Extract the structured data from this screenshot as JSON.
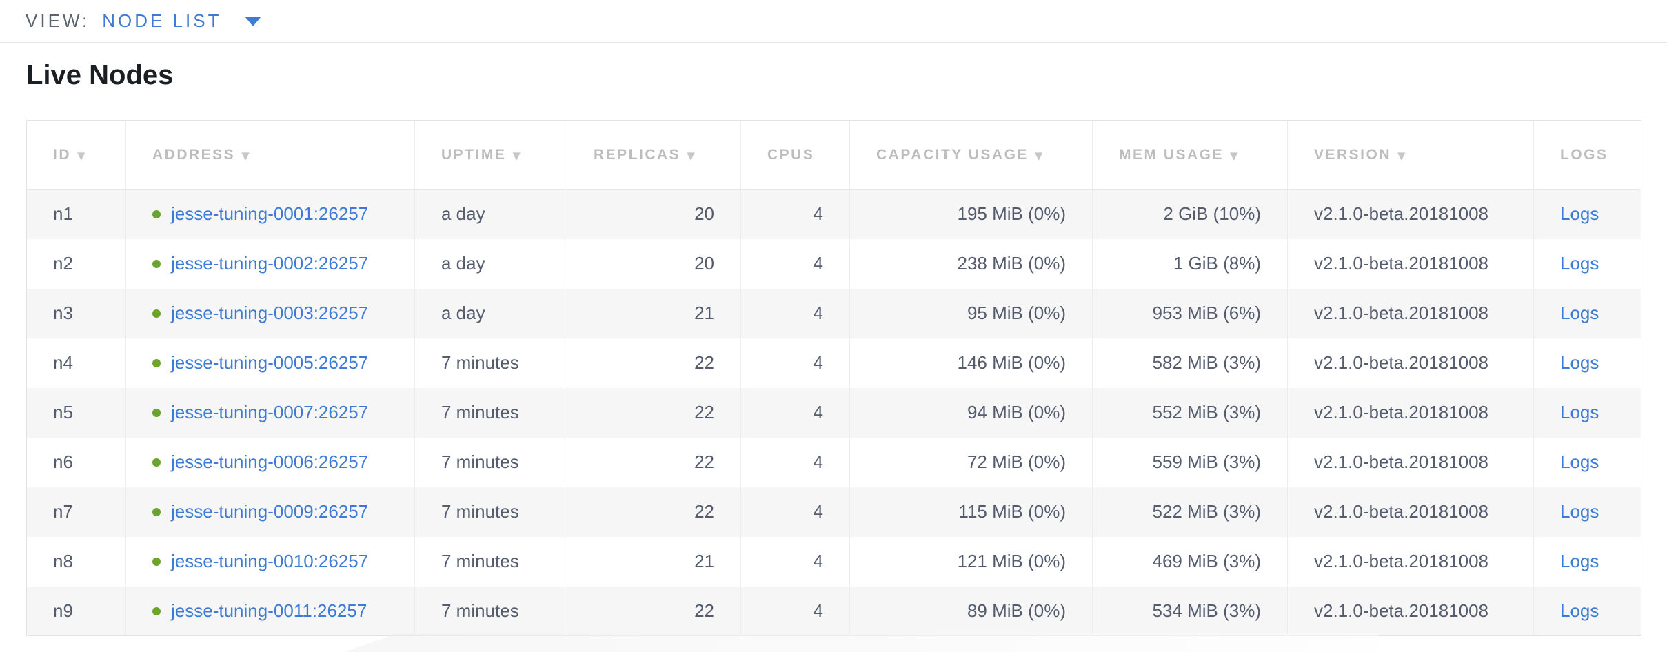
{
  "view_bar": {
    "label": "VIEW:",
    "selected": "NODE LIST"
  },
  "page": {
    "title": "Live Nodes"
  },
  "table": {
    "columns": [
      {
        "label": "ID",
        "sort_icon": "▼"
      },
      {
        "label": "ADDRESS",
        "sort_icon": "▼"
      },
      {
        "label": "UPTIME",
        "sort_icon": "▼"
      },
      {
        "label": "REPLICAS",
        "sort_icon": "▼"
      },
      {
        "label": "CPUS",
        "sort_icon": ""
      },
      {
        "label": "CAPACITY USAGE",
        "sort_icon": "▼"
      },
      {
        "label": "MEM USAGE",
        "sort_icon": "▼"
      },
      {
        "label": "VERSION",
        "sort_icon": "▼"
      },
      {
        "label": "LOGS",
        "sort_icon": ""
      }
    ],
    "rows": [
      {
        "id": "n1",
        "status": "live",
        "address": "jesse-tuning-0001:26257",
        "uptime": "a day",
        "replicas": "20",
        "cpus": "4",
        "capacity_usage": "195 MiB (0%)",
        "mem_usage": "2 GiB (10%)",
        "version": "v2.1.0-beta.20181008",
        "logs_label": "Logs"
      },
      {
        "id": "n2",
        "status": "live",
        "address": "jesse-tuning-0002:26257",
        "uptime": "a day",
        "replicas": "20",
        "cpus": "4",
        "capacity_usage": "238 MiB (0%)",
        "mem_usage": "1 GiB (8%)",
        "version": "v2.1.0-beta.20181008",
        "logs_label": "Logs"
      },
      {
        "id": "n3",
        "status": "live",
        "address": "jesse-tuning-0003:26257",
        "uptime": "a day",
        "replicas": "21",
        "cpus": "4",
        "capacity_usage": "95 MiB (0%)",
        "mem_usage": "953 MiB (6%)",
        "version": "v2.1.0-beta.20181008",
        "logs_label": "Logs"
      },
      {
        "id": "n4",
        "status": "live",
        "address": "jesse-tuning-0005:26257",
        "uptime": "7 minutes",
        "replicas": "22",
        "cpus": "4",
        "capacity_usage": "146 MiB (0%)",
        "mem_usage": "582 MiB (3%)",
        "version": "v2.1.0-beta.20181008",
        "logs_label": "Logs"
      },
      {
        "id": "n5",
        "status": "live",
        "address": "jesse-tuning-0007:26257",
        "uptime": "7 minutes",
        "replicas": "22",
        "cpus": "4",
        "capacity_usage": "94 MiB (0%)",
        "mem_usage": "552 MiB (3%)",
        "version": "v2.1.0-beta.20181008",
        "logs_label": "Logs"
      },
      {
        "id": "n6",
        "status": "live",
        "address": "jesse-tuning-0006:26257",
        "uptime": "7 minutes",
        "replicas": "22",
        "cpus": "4",
        "capacity_usage": "72 MiB (0%)",
        "mem_usage": "559 MiB (3%)",
        "version": "v2.1.0-beta.20181008",
        "logs_label": "Logs"
      },
      {
        "id": "n7",
        "status": "live",
        "address": "jesse-tuning-0009:26257",
        "uptime": "7 minutes",
        "replicas": "22",
        "cpus": "4",
        "capacity_usage": "115 MiB (0%)",
        "mem_usage": "522 MiB (3%)",
        "version": "v2.1.0-beta.20181008",
        "logs_label": "Logs"
      },
      {
        "id": "n8",
        "status": "live",
        "address": "jesse-tuning-0010:26257",
        "uptime": "7 minutes",
        "replicas": "21",
        "cpus": "4",
        "capacity_usage": "121 MiB (0%)",
        "mem_usage": "469 MiB (3%)",
        "version": "v2.1.0-beta.20181008",
        "logs_label": "Logs"
      },
      {
        "id": "n9",
        "status": "live",
        "address": "jesse-tuning-0011:26257",
        "uptime": "7 minutes",
        "replicas": "22",
        "cpus": "4",
        "capacity_usage": "89 MiB (0%)",
        "mem_usage": "534 MiB (3%)",
        "version": "v2.1.0-beta.20181008",
        "logs_label": "Logs"
      }
    ]
  },
  "colors": {
    "accent_blue": "#3e7bd4",
    "link": "#3e7bd4",
    "live_dot": "#6ba42c",
    "header_text": "#bdbdbd",
    "body_text": "#545c6e"
  }
}
